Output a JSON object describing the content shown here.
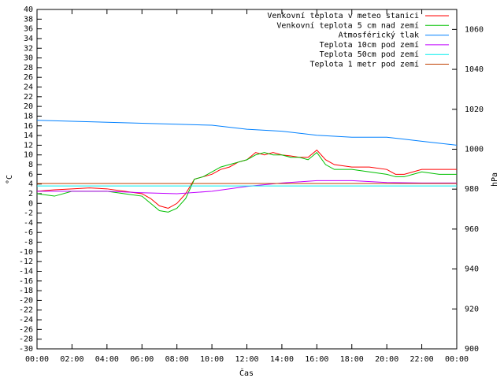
{
  "chart_data": {
    "type": "line",
    "x_label": "Čas",
    "y_label": "°C",
    "y2_label": "hPa",
    "xlim": [
      0,
      24
    ],
    "xticks": [
      {
        "value": 0,
        "label": "00:00"
      },
      {
        "value": 2,
        "label": "02:00"
      },
      {
        "value": 4,
        "label": "04:00"
      },
      {
        "value": 6,
        "label": "06:00"
      },
      {
        "value": 8,
        "label": "08:00"
      },
      {
        "value": 10,
        "label": "10:00"
      },
      {
        "value": 12,
        "label": "12:00"
      },
      {
        "value": 14,
        "label": "14:00"
      },
      {
        "value": 16,
        "label": "16:00"
      },
      {
        "value": 18,
        "label": "18:00"
      },
      {
        "value": 20,
        "label": "20:00"
      },
      {
        "value": 22,
        "label": "22:00"
      },
      {
        "value": 24,
        "label": "00:00"
      }
    ],
    "ylim": [
      -30,
      40
    ],
    "yticks": [
      -30,
      -28,
      -26,
      -24,
      -22,
      -20,
      -18,
      -16,
      -14,
      -12,
      -10,
      -8,
      -6,
      -4,
      -2,
      0,
      2,
      4,
      6,
      8,
      10,
      12,
      14,
      16,
      18,
      20,
      22,
      24,
      26,
      28,
      30,
      32,
      34,
      36,
      38,
      40
    ],
    "y2lim": [
      900,
      1070
    ],
    "y2ticks": [
      900,
      920,
      940,
      960,
      980,
      1000,
      1020,
      1040,
      1060
    ],
    "legend": "upper right",
    "series": [
      {
        "name": "Venkovní teplota v meteo stanici",
        "color": "#ff0000",
        "x": [
          0,
          1,
          2,
          3,
          4,
          5,
          6,
          6.5,
          7,
          7.5,
          8,
          8.5,
          9,
          9.5,
          10,
          10.5,
          11,
          11.5,
          12,
          12.5,
          13,
          13.5,
          14,
          14.5,
          15,
          15.5,
          16,
          16.5,
          17,
          18,
          19,
          20,
          20.5,
          21,
          21.5,
          22,
          23,
          24
        ],
        "values": [
          2.5,
          2.8,
          3,
          3.2,
          3,
          2.5,
          2,
          1,
          -0.5,
          -1,
          0,
          2,
          5,
          5.5,
          6,
          7,
          7.5,
          8.5,
          9,
          10.5,
          10,
          10.5,
          10,
          9.8,
          9.5,
          9.5,
          11,
          9,
          8,
          7.5,
          7.5,
          7,
          6,
          6,
          6.5,
          7,
          7,
          7
        ]
      },
      {
        "name": "Venkovní teplota 5 cm nad zemí",
        "color": "#00c000",
        "x": [
          0,
          1,
          2,
          3,
          4,
          5,
          6,
          6.5,
          7,
          7.5,
          8,
          8.5,
          9,
          9.5,
          10,
          10.5,
          11,
          11.5,
          12,
          12.5,
          13,
          13.5,
          14,
          14.5,
          15,
          15.5,
          16,
          16.5,
          17,
          18,
          19,
          20,
          20.5,
          21,
          21.5,
          22,
          23,
          24
        ],
        "values": [
          2,
          1.5,
          2.5,
          2.5,
          2.5,
          2,
          1.5,
          0,
          -1.5,
          -1.8,
          -1,
          1,
          5,
          5.5,
          6.5,
          7.5,
          8,
          8.5,
          9,
          10,
          10.5,
          10,
          10,
          9.5,
          9.5,
          9,
          10.5,
          8,
          7,
          7,
          6.5,
          6,
          5.5,
          5.5,
          6,
          6.5,
          6,
          6
        ]
      },
      {
        "name": "Atmosférický tlak",
        "color": "#0080ff",
        "axis": "y2",
        "x": [
          0,
          2,
          4,
          6,
          8,
          10,
          12,
          14,
          16,
          18,
          20,
          22,
          24
        ],
        "values": [
          1014.5,
          1014,
          1013.5,
          1013,
          1012.5,
          1012,
          1010,
          1009,
          1007,
          1006,
          1006,
          1004,
          1002
        ]
      },
      {
        "name": "Teplota 10cm pod zemí",
        "color": "#c000ff",
        "x": [
          0,
          4,
          6,
          8,
          10,
          12,
          14,
          16,
          18,
          20,
          22,
          24
        ],
        "values": [
          2.5,
          2.5,
          2.2,
          2,
          2.5,
          3.5,
          4.2,
          4.7,
          4.7,
          4.3,
          4.2,
          4.2
        ]
      },
      {
        "name": "Teplota 50cm pod zemí",
        "color": "#00eeee",
        "x": [
          0,
          24
        ],
        "values": [
          3.6,
          3.6
        ]
      },
      {
        "name": "Teplota 1 metr pod zemí",
        "color": "#c04000",
        "x": [
          0,
          24
        ],
        "values": [
          4.1,
          4.1
        ]
      }
    ]
  }
}
